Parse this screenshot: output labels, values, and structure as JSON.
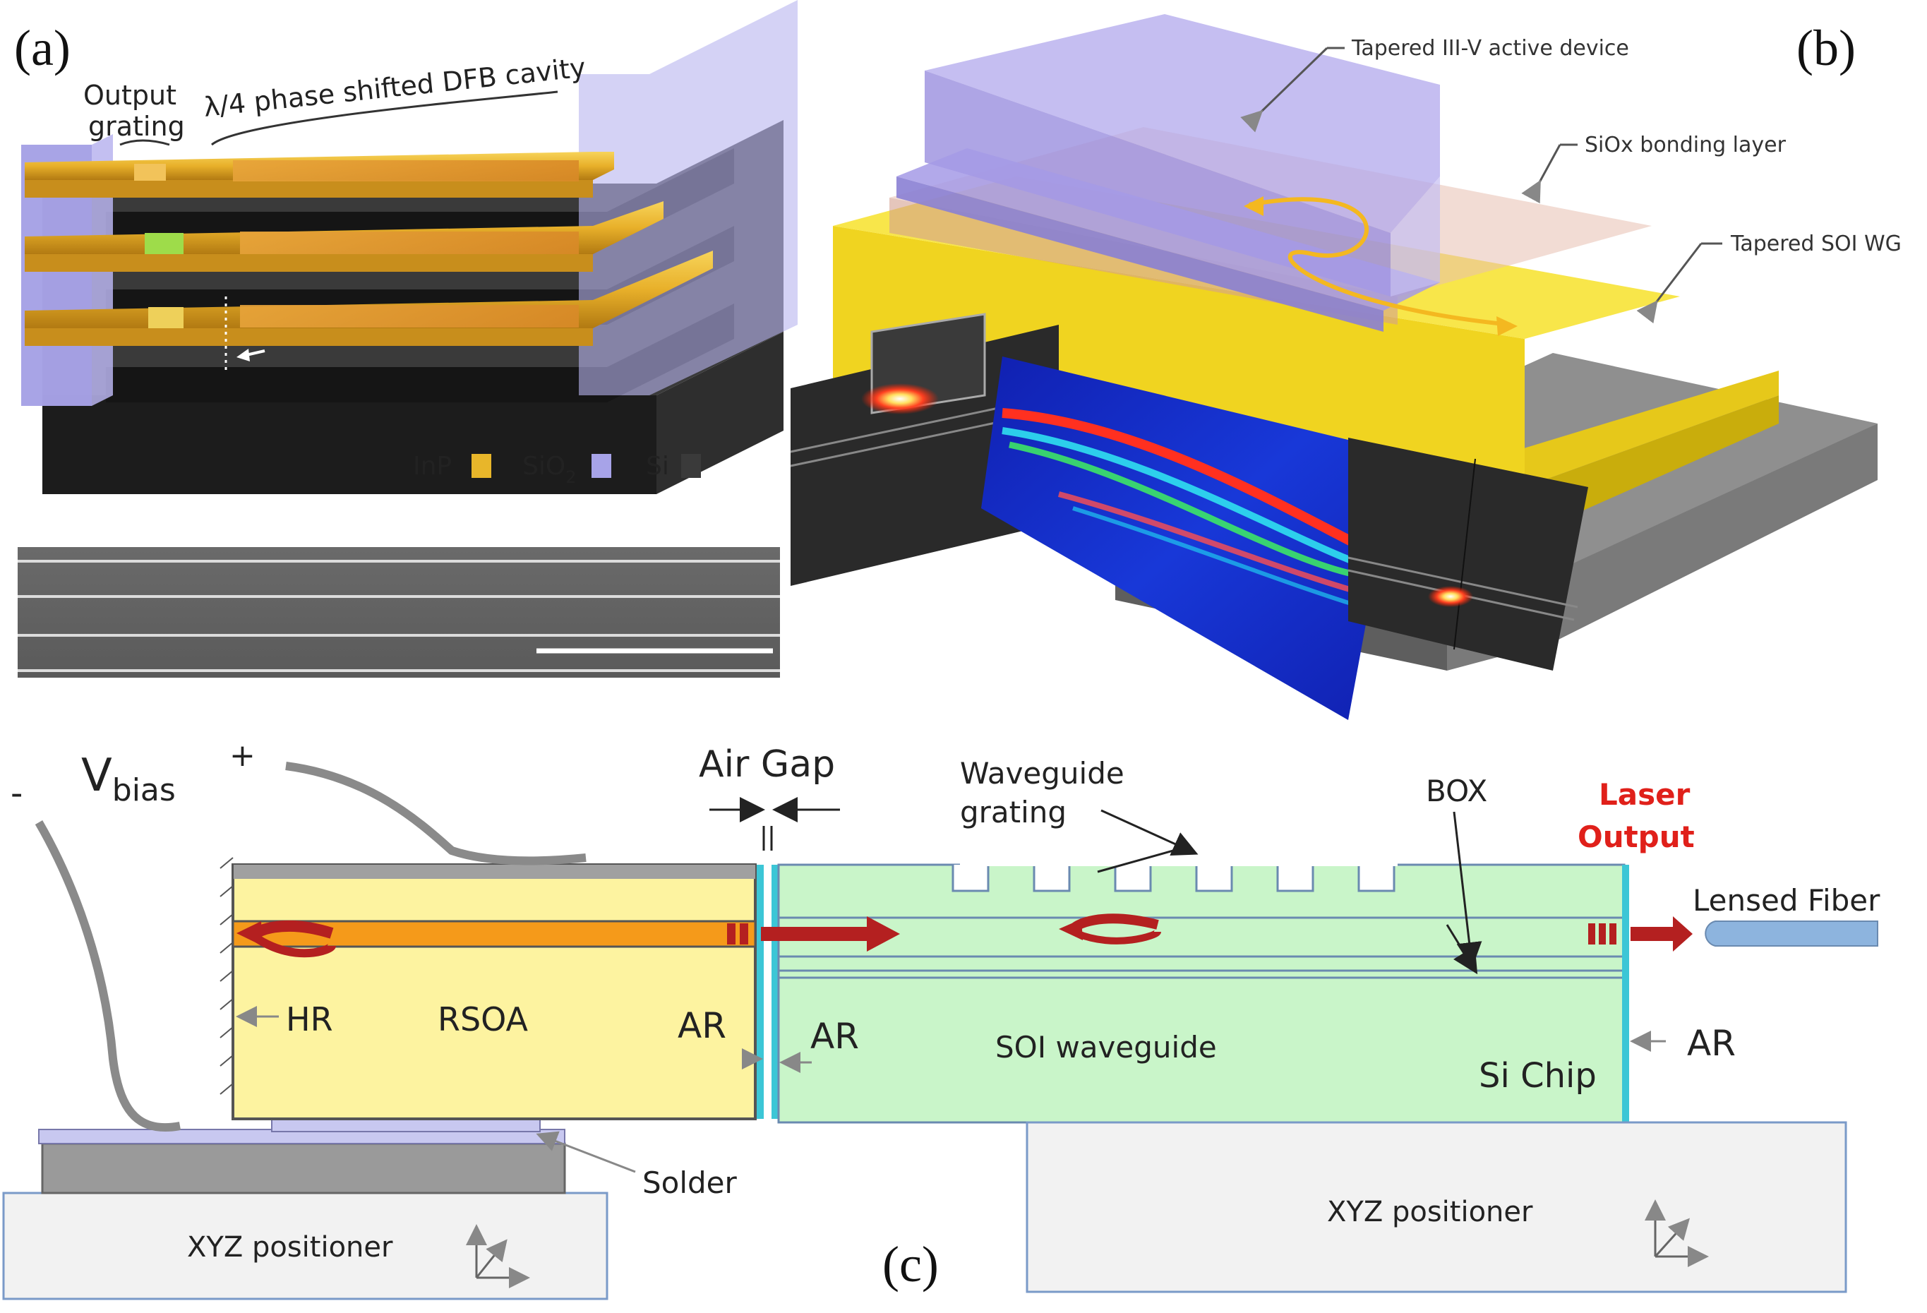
{
  "panel_a": {
    "label": "(a)",
    "output_grating_line1": "Output",
    "output_grating_line2": "grating",
    "dfb_label": "λ/4 phase shifted DFB cavity",
    "legend": {
      "inp": "InP",
      "sio2_main": "SiO",
      "sio2_sub": "2",
      "si": "Si"
    },
    "colors": {
      "inp": "#e8b62a",
      "sio2": "#a7a3e8",
      "si": "#3a3a3a"
    }
  },
  "panel_b": {
    "label": "(b)",
    "callouts": {
      "tapered_active": "Tapered III-V active device",
      "bonding": "SiOx bonding layer",
      "tapered_wg": "Tapered SOI WG"
    }
  },
  "panel_c": {
    "label": "(c)",
    "v_main": "V",
    "v_sub": "bias",
    "minus": "-",
    "plus": "+",
    "air_gap": "Air Gap",
    "waveguide_grating_line1": "Waveguide",
    "waveguide_grating_line2": "grating",
    "box": "BOX",
    "laser_output_line1": "Laser",
    "laser_output_line2": "Output",
    "lensed_fiber": "Lensed Fiber",
    "hr": "HR",
    "rsoa": "RSOA",
    "ar_rsoa": "AR",
    "ar_chip_in": "AR",
    "soi_waveguide": "SOI waveguide",
    "si_chip": "Si Chip",
    "ar_out": "AR",
    "solder": "Solder",
    "xyz_left": "XYZ positioner",
    "xyz_right": "XYZ positioner",
    "colors": {
      "laser_output": "#e0201a",
      "rsoa": "#fdf3a0",
      "chip": "#c9f5c9",
      "ar": "#3cc6d6"
    }
  }
}
